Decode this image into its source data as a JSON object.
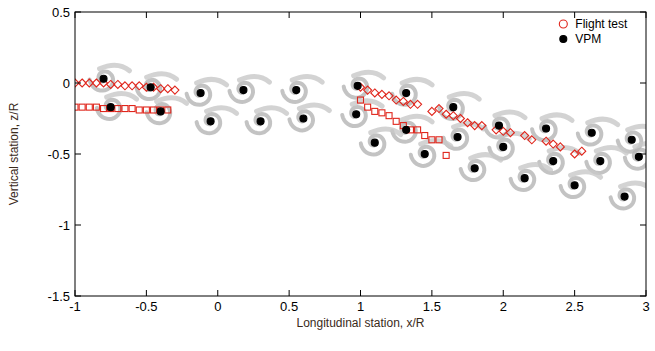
{
  "chart_data": {
    "type": "scatter",
    "xlabel": "Longitudinal station, x/R",
    "ylabel": "Vertical station, z/R",
    "xlim": [
      -1,
      3
    ],
    "xticks": [
      -1,
      -0.5,
      0,
      0.5,
      1,
      1.5,
      2,
      2.5,
      3
    ],
    "ylim": [
      -1.5,
      0.5
    ],
    "yticks": [
      -1.5,
      -1,
      -0.5,
      0,
      0.5
    ],
    "grid": false,
    "legend": "upper right",
    "series": [
      {
        "name": "Flight test",
        "color": "#e0261c",
        "marker": "diamond-open",
        "x": [
          -1,
          -0.95,
          -0.9,
          -0.85,
          -0.8,
          -0.75,
          -0.7,
          -0.65,
          -0.6,
          -0.55,
          -0.5,
          -0.45,
          -0.4,
          -0.35,
          -0.3,
          1.0,
          1.05,
          1.1,
          1.15,
          1.2,
          1.25,
          1.3,
          1.35,
          1.4,
          1.5,
          1.55,
          1.6,
          1.65,
          1.7,
          1.75,
          1.8,
          1.85,
          1.95,
          2.0,
          2.05,
          2.15,
          2.2,
          2.3,
          2.35,
          2.4,
          2.5,
          2.55
        ],
        "values": [
          0,
          0,
          0,
          0,
          0,
          -0.01,
          -0.01,
          -0.02,
          -0.02,
          -0.02,
          -0.03,
          -0.03,
          -0.04,
          -0.04,
          -0.05,
          -0.03,
          -0.05,
          -0.07,
          -0.08,
          -0.09,
          -0.12,
          -0.13,
          -0.15,
          -0.15,
          -0.2,
          -0.18,
          -0.22,
          -0.23,
          -0.25,
          -0.28,
          -0.3,
          -0.3,
          -0.33,
          -0.34,
          -0.35,
          -0.37,
          -0.4,
          -0.41,
          -0.43,
          -0.45,
          -0.5,
          -0.48
        ]
      },
      {
        "color": "#e0261c",
        "marker": "square-open",
        "x": [
          -1,
          -0.95,
          -0.9,
          -0.85,
          -0.8,
          -0.75,
          -0.7,
          -0.65,
          -0.6,
          -0.55,
          -0.5,
          -0.45,
          -0.4,
          -0.35,
          1.0,
          1.05,
          1.1,
          1.15,
          1.2,
          1.25,
          1.3,
          1.35,
          1.4,
          1.45,
          1.5,
          1.55,
          1.6
        ],
        "values": [
          -0.17,
          -0.17,
          -0.17,
          -0.17,
          -0.18,
          -0.18,
          -0.18,
          -0.18,
          -0.18,
          -0.19,
          -0.19,
          -0.19,
          -0.19,
          -0.19,
          -0.12,
          -0.17,
          -0.2,
          -0.21,
          -0.23,
          -0.27,
          -0.3,
          -0.33,
          -0.33,
          -0.37,
          -0.4,
          -0.4,
          -0.51
        ]
      },
      {
        "name": "VPM",
        "color": "#000000",
        "marker": "circle",
        "x": [
          -0.8,
          -0.47,
          -0.12,
          0.18,
          0.55,
          0.98,
          1.32,
          1.65,
          1.97,
          2.3,
          2.62,
          2.9,
          -0.75,
          -0.4,
          -0.05,
          0.3,
          0.6,
          0.97,
          1.32,
          1.68,
          2.0,
          2.35,
          2.68,
          2.95,
          1.1,
          1.45,
          1.8,
          2.15,
          2.5,
          2.85
        ],
        "values": [
          0.03,
          -0.03,
          -0.07,
          -0.05,
          -0.05,
          -0.02,
          -0.07,
          -0.17,
          -0.3,
          -0.32,
          -0.35,
          -0.4,
          -0.17,
          -0.2,
          -0.27,
          -0.27,
          -0.25,
          -0.22,
          -0.33,
          -0.38,
          -0.45,
          -0.55,
          -0.55,
          -0.52,
          -0.42,
          -0.5,
          -0.6,
          -0.67,
          -0.72,
          -0.8
        ]
      }
    ]
  }
}
